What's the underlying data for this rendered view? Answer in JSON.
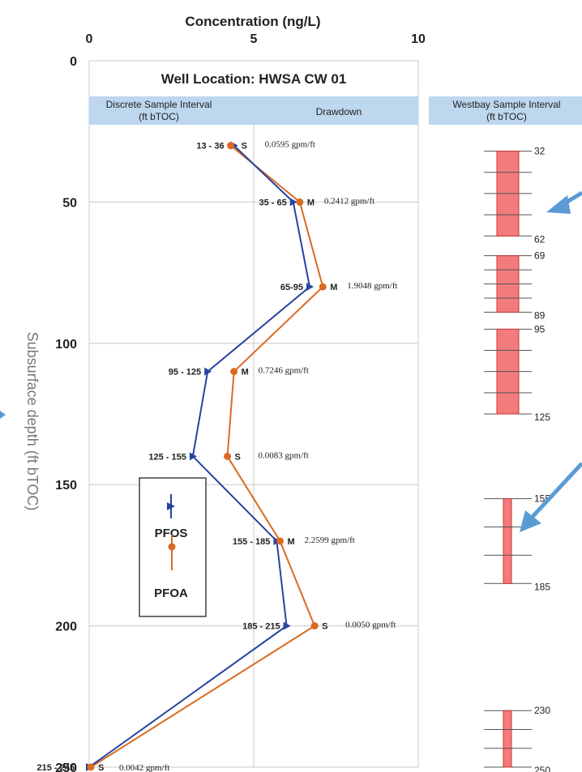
{
  "chart_data": {
    "type": "line",
    "title": "Well Location: HWSA CW 01",
    "xlabel": "Concentration (ng/L)",
    "ylabel": "Subsurface depth (ft bTOC)",
    "xlim": [
      0,
      10
    ],
    "ylim": [
      0,
      250
    ],
    "x_ticks": [
      "0",
      "5",
      "10"
    ],
    "y_ticks": [
      "0",
      "50",
      "100",
      "150",
      "200",
      "250"
    ],
    "y_inverted": true,
    "grid": true,
    "legend_position": "left-middle",
    "header_left": "Discrete Sample Interval\n(ft bTOC)",
    "header_right": "Drawdown",
    "series": [
      {
        "name": "PFOS",
        "color": "#2744a0",
        "marker": "triangle",
        "points": [
          [
            4.4,
            30
          ],
          [
            6.2,
            50
          ],
          [
            6.7,
            80
          ],
          [
            3.6,
            110
          ],
          [
            3.15,
            140
          ],
          [
            5.7,
            170
          ],
          [
            6.0,
            200
          ],
          [
            0,
            250
          ]
        ]
      },
      {
        "name": "PFOA",
        "color": "#d96a22",
        "marker": "circle",
        "points": [
          [
            4.3,
            30
          ],
          [
            6.4,
            50
          ],
          [
            7.1,
            80
          ],
          [
            4.4,
            110
          ],
          [
            4.2,
            140
          ],
          [
            5.8,
            170
          ],
          [
            6.85,
            200
          ],
          [
            0.05,
            250
          ]
        ]
      }
    ],
    "intervals": [
      {
        "label": "13 - 36",
        "code": "S",
        "drawdown": "0.0595 gpm/ft",
        "depth": 30
      },
      {
        "label": "35 - 65",
        "code": "M",
        "drawdown": "0.2412 gpm/ft",
        "depth": 50
      },
      {
        "label": "65-95",
        "code": "M",
        "drawdown": "1.9048 gpm/ft",
        "depth": 80
      },
      {
        "label": "95 - 125",
        "code": "M",
        "drawdown": "0.7246 gpm/ft",
        "depth": 110
      },
      {
        "label": "125 - 155",
        "code": "S",
        "drawdown": "0.0083 gpm/ft",
        "depth": 140
      },
      {
        "label": "155 - 185",
        "code": "M",
        "drawdown": "2.2599 gpm/ft",
        "depth": 170
      },
      {
        "label": "185 - 215",
        "code": "S",
        "drawdown": "0.0050 gpm/ft",
        "depth": 200
      },
      {
        "label": "215 - 245",
        "code": "S",
        "drawdown": "0.0042 gpm/ft",
        "depth": 250
      }
    ],
    "westbay": {
      "title": "Westbay Sample Interval\n(ft bTOC)",
      "groups": [
        {
          "top": 32,
          "bottom": 62,
          "labels": [
            "32",
            "62"
          ],
          "wide": true
        },
        {
          "top": 69,
          "bottom": 89,
          "labels": [
            "69",
            "89"
          ],
          "wide": true
        },
        {
          "top": 95,
          "bottom": 125,
          "labels": [
            "95",
            "125"
          ],
          "wide": true
        },
        {
          "top": 155,
          "bottom": 185,
          "labels": [
            "155",
            "185"
          ],
          "wide": false
        },
        {
          "top": 230,
          "bottom": 250,
          "labels": [
            "230",
            "250"
          ],
          "wide": false
        }
      ],
      "fill_color": "#f47b7b"
    }
  }
}
